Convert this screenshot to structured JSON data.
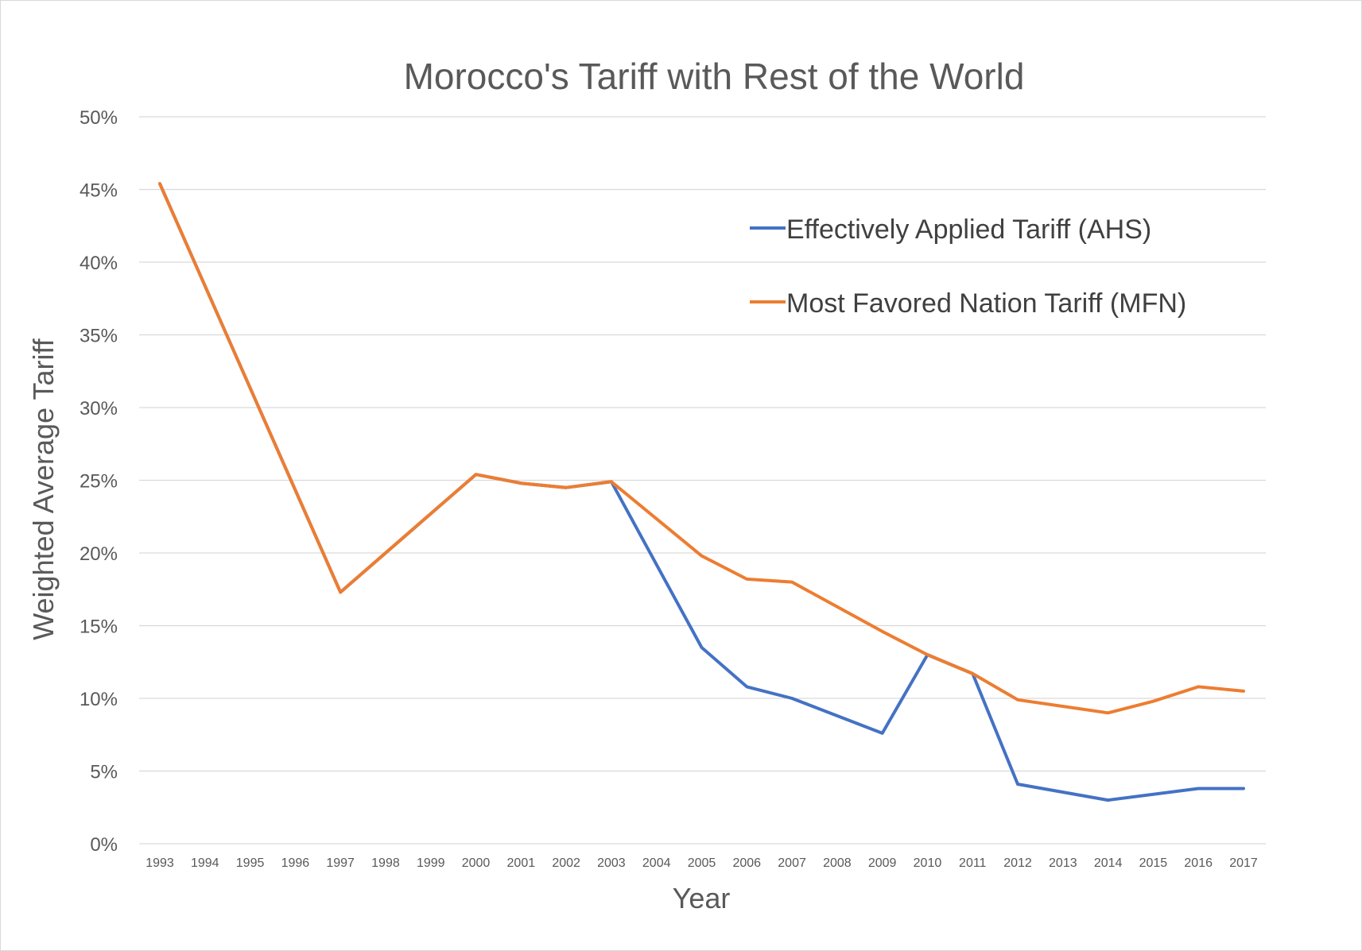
{
  "chart_data": {
    "type": "line",
    "title": "Morocco's Tariff with Rest of the World",
    "xlabel": "Year",
    "ylabel": "Weighted Average Tariff",
    "ylim": [
      0,
      50
    ],
    "ytick_step": 5,
    "yticks": [
      "0%",
      "5%",
      "10%",
      "15%",
      "20%",
      "25%",
      "30%",
      "35%",
      "40%",
      "45%",
      "50%"
    ],
    "grid": true,
    "legend_position": "top-right",
    "categories": [
      "1993",
      "1994",
      "1995",
      "1996",
      "1997",
      "1998",
      "1999",
      "2000",
      "2001",
      "2002",
      "2003",
      "2004",
      "2005",
      "2006",
      "2007",
      "2008",
      "2009",
      "2010",
      "2011",
      "2012",
      "2013",
      "2014",
      "2015",
      "2016",
      "2017"
    ],
    "series": [
      {
        "name": "Effectively Applied Tariff (AHS)",
        "color": "#4472c4",
        "values": [
          45.4,
          null,
          null,
          null,
          17.3,
          null,
          null,
          25.4,
          24.8,
          24.5,
          24.9,
          null,
          13.5,
          10.8,
          10.0,
          null,
          7.6,
          13.0,
          11.7,
          4.1,
          null,
          3.0,
          null,
          3.8,
          3.8
        ]
      },
      {
        "name": "Most Favored Nation Tariff (MFN)",
        "color": "#ed7d31",
        "values": [
          45.4,
          null,
          null,
          null,
          17.3,
          null,
          null,
          25.4,
          24.8,
          24.5,
          24.9,
          null,
          19.8,
          18.2,
          18.0,
          null,
          14.6,
          13.0,
          11.7,
          9.9,
          null,
          9.0,
          9.8,
          10.8,
          10.5
        ]
      }
    ]
  }
}
